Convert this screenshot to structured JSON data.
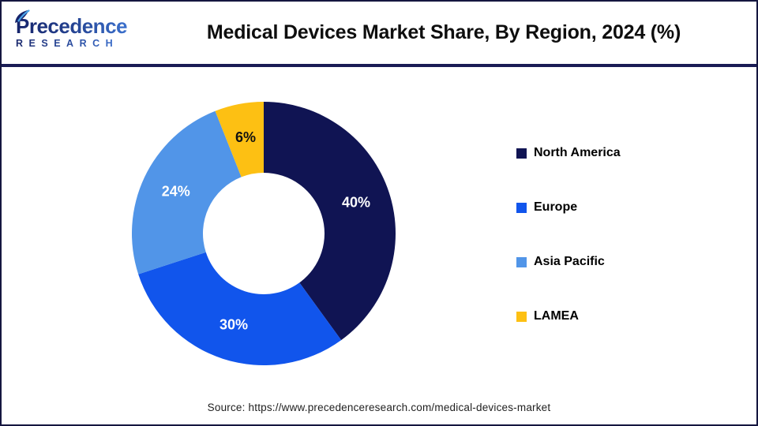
{
  "header": {
    "logo": {
      "name": "Precedence",
      "subname": "RESEARCH"
    },
    "title": "Medical Devices Market Share, By Region, 2024 (%)"
  },
  "chart_data": {
    "type": "pie",
    "subtype": "donut",
    "title": "Medical Devices Market Share, By Region, 2024 (%)",
    "categories": [
      "North America",
      "Europe",
      "Asia Pacific",
      "LAMEA"
    ],
    "values": [
      40,
      30,
      24,
      6
    ],
    "slice_labels": [
      "40%",
      "30%",
      "24%",
      "6%"
    ],
    "colors": [
      "#101453",
      "#1155ec",
      "#5195e8",
      "#fdc013"
    ],
    "slice_label_colors": [
      "#ffffff",
      "#ffffff",
      "#ffffff",
      "#111111"
    ],
    "start_angle_deg": 0,
    "direction": "clockwise",
    "outer_radius": 167,
    "inner_radius": 77,
    "label_radius": 123,
    "legend_position": "right"
  },
  "footer": {
    "source": "Source: https://www.precedenceresearch.com/medical-devices-market"
  },
  "colors": {
    "accent_navy": "#1a1c55",
    "border": "#15163f",
    "title_text": "#0e0e0e",
    "source_text": "#1f1f1f"
  }
}
